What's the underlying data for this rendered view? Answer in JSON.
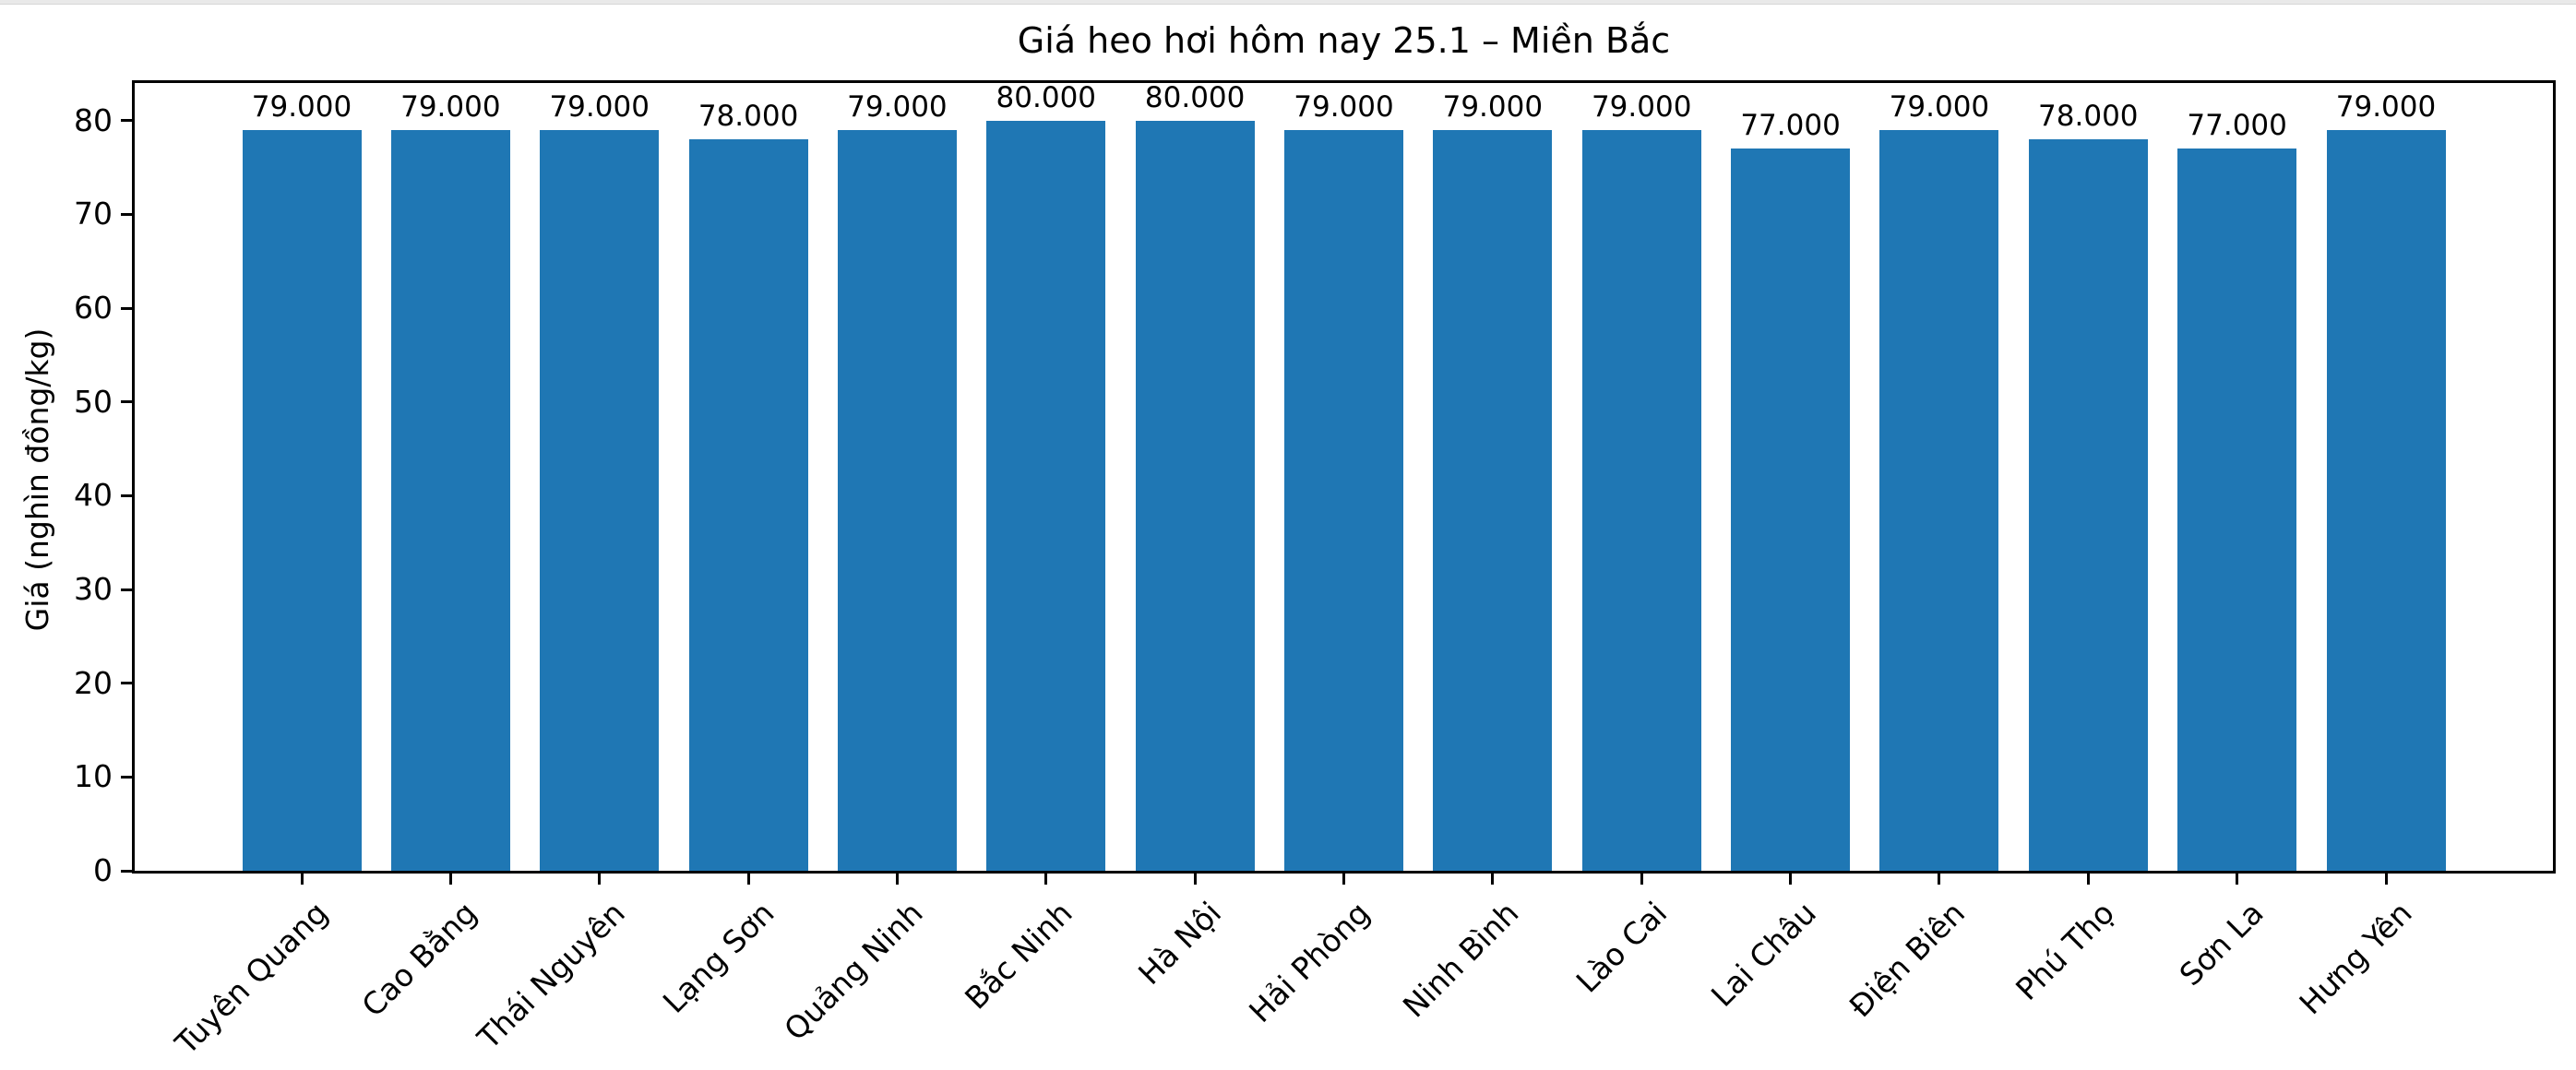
{
  "figure": {
    "title": "Giá heo hơi hôm nay 25.1 – Miền Bắc"
  },
  "chart_data": {
    "type": "bar",
    "title": "Giá heo hơi hôm nay 25.1 – Miền Bắc",
    "xlabel": "",
    "ylabel": "Giá (nghìn đồng/kg)",
    "categories": [
      "Tuyên Quang",
      "Cao Bằng",
      "Thái Nguyên",
      "Lạng Sơn",
      "Quảng Ninh",
      "Bắc Ninh",
      "Hà Nội",
      "Hải Phòng",
      "Ninh Bình",
      "Lào Cai",
      "Lai Châu",
      "Điện Biên",
      "Phú Thọ",
      "Sơn La",
      "Hưng Yên"
    ],
    "values": [
      79,
      79,
      79,
      78,
      79,
      80,
      80,
      79,
      79,
      79,
      77,
      79,
      78,
      77,
      79
    ],
    "value_labels": [
      "79.000",
      "79.000",
      "79.000",
      "78.000",
      "79.000",
      "80.000",
      "80.000",
      "79.000",
      "79.000",
      "79.000",
      "77.000",
      "79.000",
      "78.000",
      "77.000",
      "79.000"
    ],
    "yticks": [
      0,
      10,
      20,
      30,
      40,
      50,
      60,
      70,
      80
    ],
    "ylim": [
      0,
      84
    ],
    "bar_color": "#1f77b4",
    "text_color": "#000000",
    "grid": false,
    "legend": null,
    "x_tick_rotation_deg": 45
  }
}
